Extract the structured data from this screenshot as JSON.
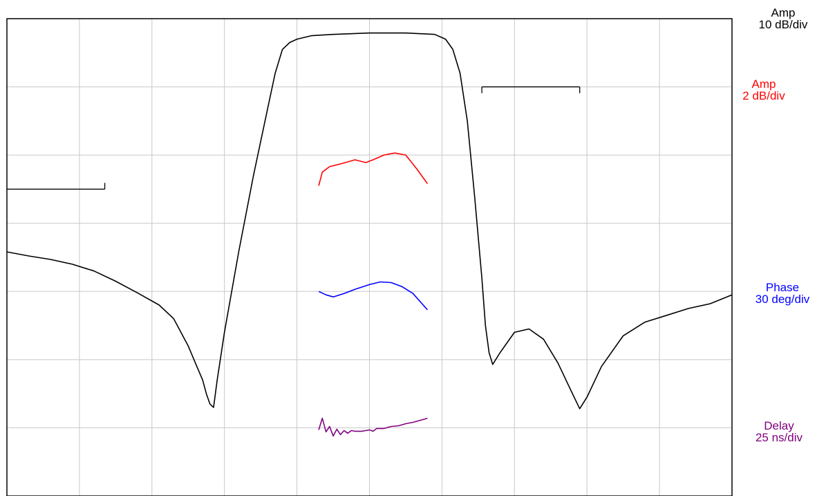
{
  "chart_data": {
    "type": "line",
    "title": "",
    "xlabel": "",
    "ylabel": "",
    "grid": true,
    "x_divisions": 10,
    "y_divisions": 7,
    "xlim": [
      0,
      10
    ],
    "ylim": [
      0,
      7
    ],
    "scales": [
      {
        "name": "Amp",
        "value": "10 dB/div",
        "color": "#000000"
      },
      {
        "name": "Amp",
        "value": "2 dB/div",
        "color": "#ff0000"
      },
      {
        "name": "Phase",
        "value": "30 deg/div",
        "color": "#0000ff"
      },
      {
        "name": "Delay",
        "value": "25 ns/div",
        "color": "#800080"
      }
    ],
    "markers": [
      {
        "x": [
          0.0,
          1.35
        ],
        "y": 4.5,
        "tick": "up"
      },
      {
        "x": [
          6.55,
          7.9
        ],
        "y": 6.0,
        "tick": "down"
      }
    ],
    "series": [
      {
        "color": "#000000",
        "x": [
          0.0,
          0.3,
          0.6,
          0.9,
          1.2,
          1.5,
          1.8,
          2.1,
          2.3,
          2.5,
          2.6,
          2.7,
          2.75,
          2.8,
          2.85,
          2.9,
          3.0,
          3.2,
          3.4,
          3.6,
          3.7,
          3.8,
          3.9,
          4.0,
          4.2,
          4.5,
          5.0,
          5.5,
          5.9,
          6.05,
          6.15,
          6.25,
          6.35,
          6.45,
          6.55,
          6.6,
          6.65,
          6.7,
          6.8,
          7.0,
          7.2,
          7.4,
          7.6,
          7.8,
          7.9,
          8.0,
          8.2,
          8.5,
          8.8,
          9.1,
          9.4,
          9.7,
          10.0
        ],
        "y": [
          3.58,
          3.52,
          3.47,
          3.4,
          3.3,
          3.15,
          2.98,
          2.8,
          2.6,
          2.2,
          1.95,
          1.7,
          1.5,
          1.35,
          1.3,
          1.7,
          2.4,
          3.6,
          4.7,
          5.7,
          6.2,
          6.55,
          6.65,
          6.7,
          6.75,
          6.77,
          6.79,
          6.79,
          6.77,
          6.7,
          6.55,
          6.2,
          5.5,
          4.4,
          3.2,
          2.5,
          2.1,
          1.93,
          2.1,
          2.4,
          2.45,
          2.3,
          1.95,
          1.5,
          1.28,
          1.45,
          1.9,
          2.35,
          2.55,
          2.65,
          2.75,
          2.82,
          2.95
        ]
      },
      {
        "color": "#ff0000",
        "x": [
          4.3,
          4.35,
          4.45,
          4.6,
          4.8,
          4.95,
          5.05,
          5.2,
          5.35,
          5.5,
          5.65,
          5.8
        ],
        "y": [
          4.55,
          4.75,
          4.83,
          4.87,
          4.93,
          4.89,
          4.93,
          5.0,
          5.03,
          5.0,
          4.8,
          4.58
        ]
      },
      {
        "color": "#0000ff",
        "x": [
          4.3,
          4.4,
          4.5,
          4.65,
          4.8,
          5.0,
          5.15,
          5.3,
          5.45,
          5.6,
          5.8
        ],
        "y": [
          3.0,
          2.95,
          2.92,
          2.97,
          3.03,
          3.1,
          3.14,
          3.13,
          3.07,
          2.97,
          2.73
        ]
      },
      {
        "color": "#800080",
        "x": [
          4.3,
          4.35,
          4.4,
          4.45,
          4.5,
          4.55,
          4.6,
          4.65,
          4.7,
          4.75,
          4.8,
          4.9,
          5.0,
          5.05,
          5.1,
          5.2,
          5.3,
          5.4,
          5.5,
          5.6,
          5.7,
          5.8
        ],
        "y": [
          0.97,
          1.14,
          0.94,
          1.02,
          0.88,
          0.98,
          0.9,
          0.96,
          0.92,
          0.96,
          0.95,
          0.95,
          0.97,
          0.95,
          0.99,
          0.99,
          1.02,
          1.03,
          1.06,
          1.08,
          1.11,
          1.14
        ]
      }
    ]
  }
}
